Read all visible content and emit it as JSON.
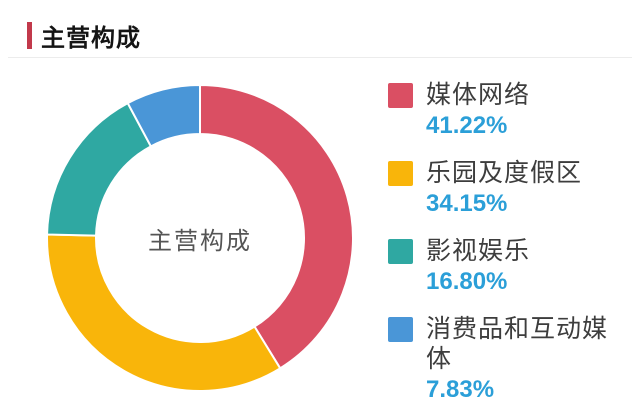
{
  "page": {
    "accent_red": "#c2394b",
    "percent_color": "#2b9fd8",
    "label_color": "#3d3d3d",
    "background": "#ffffff"
  },
  "header": {
    "title": "主营构成"
  },
  "chart_data": {
    "type": "pie",
    "donut": true,
    "title": "主营构成",
    "center_label": "主营构成",
    "legend_position": "right",
    "start_angle": "top",
    "direction": "clockwise",
    "segments": [
      {
        "id": "media-networks",
        "label": "媒体网络",
        "value": 41.22,
        "display": "41.22%",
        "color": "#da4f63"
      },
      {
        "id": "parks-and-resorts",
        "label": "乐园及度假区",
        "value": 34.15,
        "display": "34.15%",
        "color": "#f9b50a"
      },
      {
        "id": "studio-entertainment",
        "label": "影视娱乐",
        "value": 16.8,
        "display": "16.80%",
        "color": "#2fa8a2"
      },
      {
        "id": "consumer-products",
        "label": "消费品和互动媒体",
        "value": 7.83,
        "display": "7.83%",
        "color": "#4a96d7"
      }
    ]
  }
}
